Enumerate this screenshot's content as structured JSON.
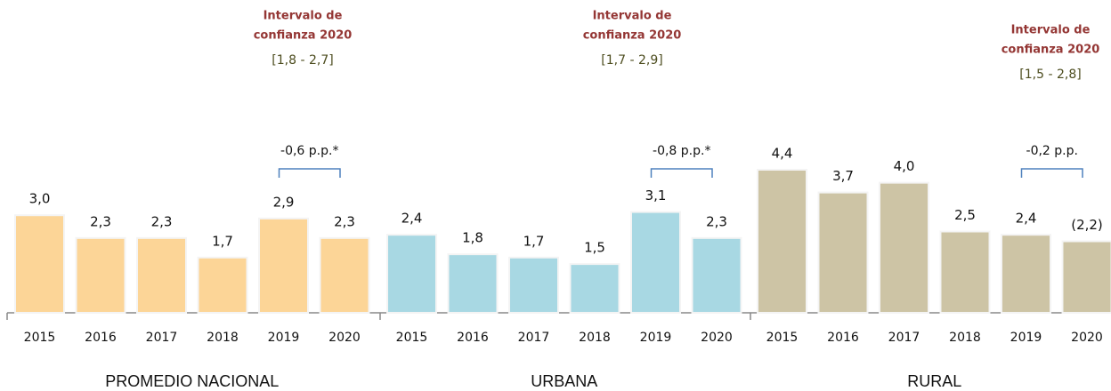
{
  "chart_data": [
    {
      "type": "bar",
      "title": "PROMEDIO NACIONAL",
      "categories": [
        "2015",
        "2016",
        "2017",
        "2018",
        "2019",
        "2020"
      ],
      "values": [
        3.0,
        2.3,
        2.3,
        1.7,
        2.9,
        2.3
      ],
      "value_labels": [
        "3,0",
        "2,3",
        "2,3",
        "1,7",
        "2,9",
        "2,3"
      ],
      "color": "#fcd597",
      "annotation": {
        "lines": [
          "Intervalo de",
          "confianza 2020"
        ],
        "interval": "[1,8  -  2,7]"
      },
      "difference": "-0,6 p.p.*"
    },
    {
      "type": "bar",
      "title": "URBANA",
      "categories": [
        "2015",
        "2016",
        "2017",
        "2018",
        "2019",
        "2020"
      ],
      "values": [
        2.4,
        1.8,
        1.7,
        1.5,
        3.1,
        2.3
      ],
      "value_labels": [
        "2,4",
        "1,8",
        "1,7",
        "1,5",
        "3,1",
        "2,3"
      ],
      "color": "#a8d8e3",
      "annotation": {
        "lines": [
          "Intervalo de",
          "confianza 2020"
        ],
        "interval": "[1,7 - 2,9]"
      },
      "difference": "-0,8 p.p.*"
    },
    {
      "type": "bar",
      "title": "RURAL",
      "categories": [
        "2015",
        "2016",
        "2017",
        "2018",
        "2019",
        "2020"
      ],
      "values": [
        4.4,
        3.7,
        4.0,
        2.5,
        2.4,
        2.2
      ],
      "value_labels": [
        "4,4",
        "3,7",
        "4,0",
        "2,5",
        "2,4",
        "(2,2)"
      ],
      "color": "#cdc4a5",
      "annotation": {
        "lines": [
          "Intervalo de",
          "confianza 2020"
        ],
        "interval": "[1,5 - 2,8]"
      },
      "difference": "-0,2 p.p."
    }
  ]
}
